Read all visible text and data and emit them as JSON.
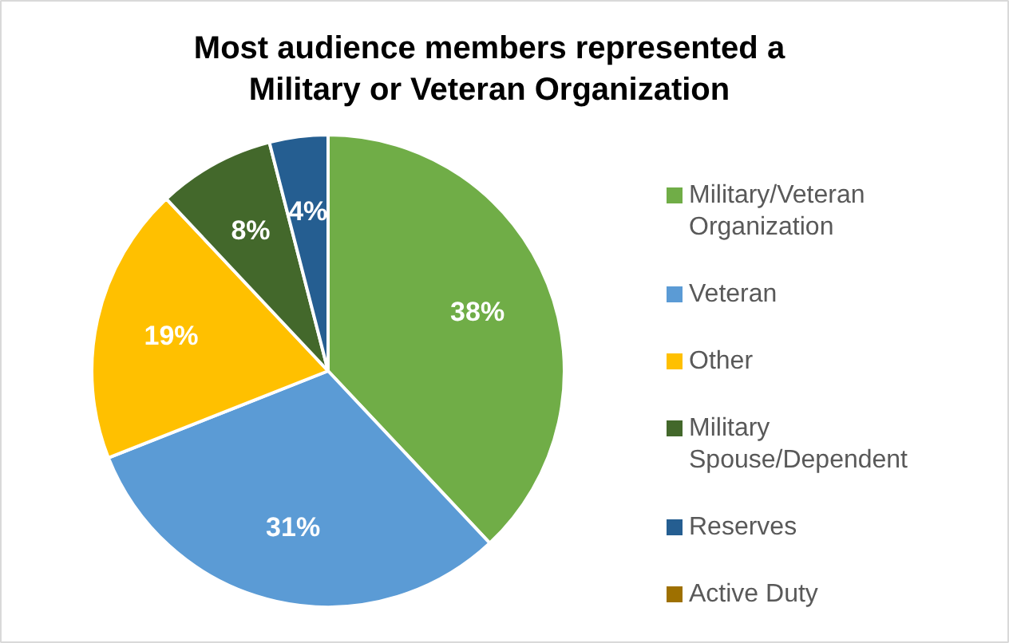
{
  "chart_data": {
    "type": "pie",
    "title": "Most audience members represented a Military or Veteran Organization",
    "categories": [
      "Military/Veteran Organization",
      "Veteran",
      "Other",
      "Military Spouse/Dependent",
      "Reserves",
      "Active Duty"
    ],
    "values": [
      38,
      31,
      19,
      8,
      4,
      0
    ],
    "colors": [
      "#70ad47",
      "#5b9bd5",
      "#ffc000",
      "#43682b",
      "#255e91",
      "#9e7000"
    ],
    "value_labels": [
      "38%",
      "31%",
      "19%",
      "8%",
      "4%",
      null
    ],
    "legend": "right"
  }
}
